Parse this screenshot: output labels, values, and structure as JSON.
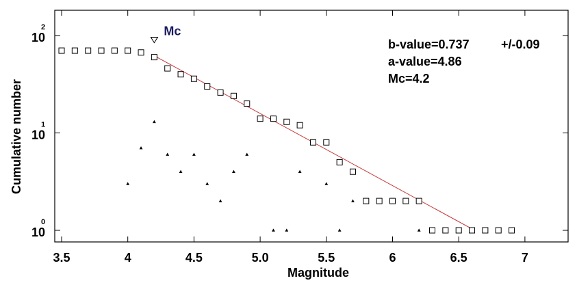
{
  "chart_data": {
    "type": "scatter",
    "xlabel": "Magnitude",
    "ylabel": "Cumulative number",
    "x_scale": "linear",
    "y_scale": "log",
    "xlim": [
      3.45,
      7.42
    ],
    "ylim": [
      1,
      140
    ],
    "x_ticks": [
      3.5,
      4,
      4.5,
      5.0,
      5.5,
      6,
      6.5,
      7
    ],
    "x_tick_labels": [
      "3.5",
      "4",
      "4.5",
      "5.0",
      "5.5",
      "6",
      "6.5",
      "7"
    ],
    "y_ticks": [
      {
        "value": 100,
        "base": "10",
        "exp": "2"
      },
      {
        "value": 10,
        "base": "10",
        "exp": "1"
      },
      {
        "value": 1,
        "base": "10",
        "exp": "0"
      }
    ],
    "cumulative": {
      "x": [
        3.5,
        3.6,
        3.7,
        3.8,
        3.9,
        4.0,
        4.1,
        4.2,
        4.3,
        4.4,
        4.5,
        4.6,
        4.7,
        4.8,
        4.9,
        5.0,
        5.1,
        5.2,
        5.3,
        5.4,
        5.5,
        5.6,
        5.7,
        5.8,
        5.9,
        6.0,
        6.1,
        6.2,
        6.3,
        6.4,
        6.5,
        6.6,
        6.7,
        6.8,
        6.9
      ],
      "y": [
        70,
        70,
        70,
        70,
        70,
        70,
        67,
        60,
        46,
        40,
        36,
        30,
        26,
        24,
        20,
        14,
        14,
        13,
        12,
        8,
        8,
        5,
        4,
        2,
        2,
        2,
        2,
        2,
        1,
        1,
        1,
        1,
        1,
        1,
        1
      ]
    },
    "noncumulative": {
      "x": [
        4.0,
        4.1,
        4.2,
        4.3,
        4.4,
        4.5,
        4.6,
        4.7,
        4.8,
        4.9,
        5.1,
        5.2,
        5.3,
        5.5,
        5.6,
        5.7,
        6.2
      ],
      "y": [
        3,
        7,
        13,
        6,
        4,
        6,
        3,
        2,
        4,
        6,
        1,
        1,
        4,
        3,
        1,
        2,
        1
      ]
    },
    "mc_marker": {
      "x": 4.2,
      "y": 90,
      "label": "Mc"
    },
    "fit_line": {
      "x": [
        4.2,
        6.62
      ],
      "y": [
        62,
        1
      ]
    },
    "annotations": {
      "b_value": "b-value=0.737",
      "b_error": "+/-0.09",
      "a_value": "a-value=4.86",
      "mc": "Mc=4.2"
    },
    "colors": {
      "fit_line": "#c83a3a",
      "mc_label": "#1a1a5e"
    }
  }
}
